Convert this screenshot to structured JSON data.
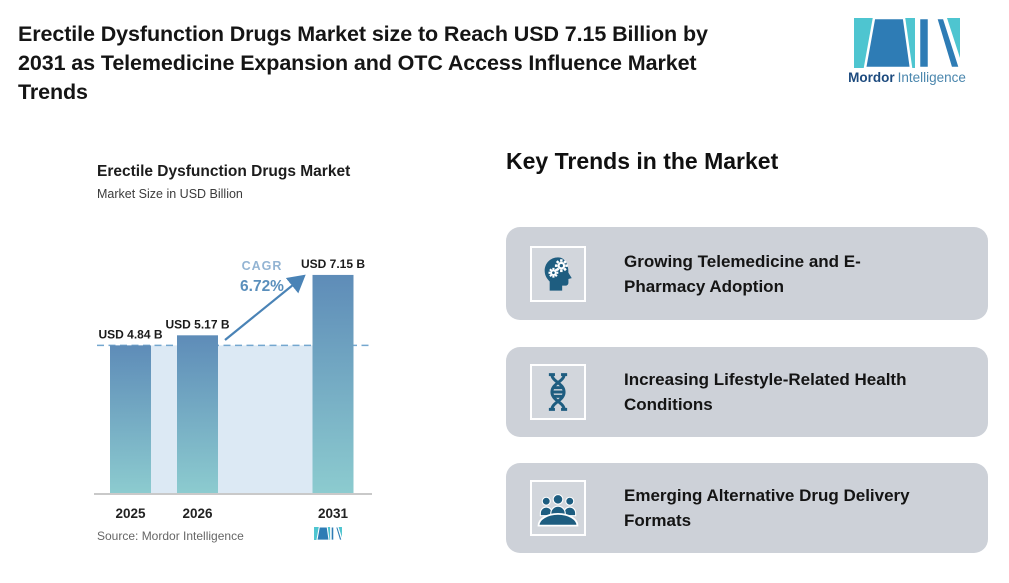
{
  "header": {
    "title_lines": [
      "Erectile Dysfunction Drugs Market size to Reach USD 7.15 Billion by",
      "2031 as Telemedicine Expansion and OTC Access Influence Market",
      "Trends"
    ],
    "logo": {
      "brand_bold": "Mordor",
      "brand_light": "Intelligence"
    }
  },
  "chart": {
    "title": "Erectile Dysfunction Drugs Market",
    "subtitle": "Market Size in USD Billion",
    "source": "Source: Mordor Intelligence"
  },
  "chart_data": {
    "type": "bar",
    "title": "Erectile Dysfunction Drugs Market",
    "ylabel": "Market Size in USD Billion",
    "categories": [
      "2025",
      "2026",
      "2031"
    ],
    "values": [
      4.84,
      5.17,
      7.15
    ],
    "bar_labels": [
      "USD 4.84 B",
      "USD 5.17 B",
      "USD 7.15 B"
    ],
    "cagr_label": "CAGR",
    "cagr_value": "6.72%",
    "baseline_reference": 4.84,
    "ylim": [
      0,
      8.5
    ],
    "grid": "off",
    "legend": "none",
    "colors": {
      "bar_top": "#5e8cb8",
      "bar_bottom": "#8ccbcf",
      "shaded_area": "#dce9f4",
      "dashed_line": "#74a7cf",
      "arrow": "#4a83b6",
      "cagr_text": "#93b4d3",
      "cagr_value_text": "#5a8fbc",
      "value_label": "#1b1b1b",
      "axis_line": "#c9c9c9",
      "tick_label": "#222222"
    }
  },
  "key_trends": {
    "heading": "Key Trends in the Market",
    "cards": [
      {
        "icon": "head-gears-icon",
        "text": "Growing Telemedicine and E-Pharmacy Adoption"
      },
      {
        "icon": "dna-icon",
        "text": "Increasing Lifestyle-Related Health Conditions"
      },
      {
        "icon": "people-group-icon",
        "text": "Emerging Alternative Drug Delivery Formats"
      }
    ]
  },
  "colors": {
    "teal": "#4ec5d0",
    "logo_blue": "#2e7cb5",
    "brand_dark": "#1c4a7e",
    "brand_light_text": "#4a86ad",
    "card_bg": "#cdd1d8",
    "icon_color": "#1e5d80"
  }
}
